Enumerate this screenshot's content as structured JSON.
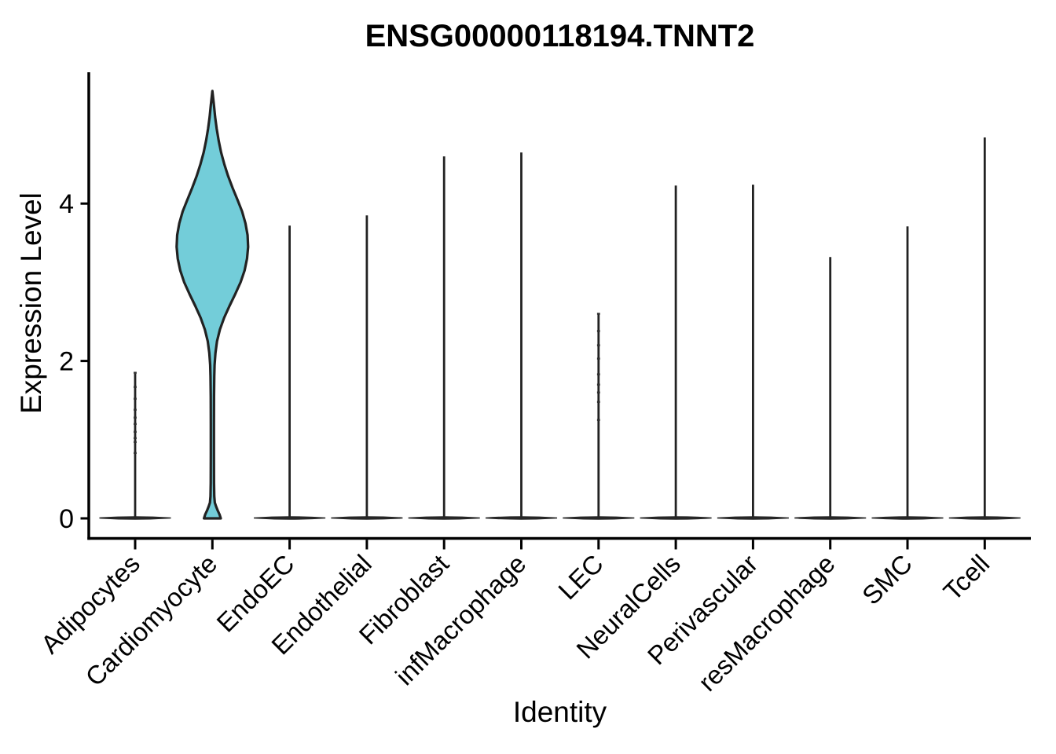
{
  "figure": {
    "title": "ENSG00000118194.TNNT2",
    "x_axis_label": "Identity",
    "y_axis_label": "Expression Level"
  },
  "chart_data": {
    "type": "violin",
    "title": "ENSG00000118194.TNNT2",
    "xlabel": "Identity",
    "ylabel": "Expression Level",
    "ylim": [
      0,
      5.5
    ],
    "y_ticks": [
      0,
      2,
      4
    ],
    "grid": false,
    "legend": "none",
    "x_tick_rotation": -45,
    "violin_width": 0.9,
    "fill_color": "#73CDD9",
    "outline_color": "#222222",
    "zero_bar_color": "#262626",
    "point_color": "#2e2e2e",
    "categories": [
      "Adipocytes",
      "Cardiomyocyte",
      "EndoEC",
      "Endothelial",
      "Fibroblast",
      "infMacrophage",
      "LEC",
      "NeuralCells",
      "Perivascular",
      "resMacrophage",
      "SMC",
      "Tcell"
    ],
    "series": [
      {
        "name": "Adipocytes",
        "shape": "spike",
        "zero_bar": true,
        "max": 1.85,
        "points": [
          1.85,
          1.67,
          1.52,
          1.38,
          1.28,
          1.2,
          1.1,
          1.02,
          0.97,
          0.83
        ]
      },
      {
        "name": "Cardiomyocyte",
        "shape": "violin",
        "zero_bar": false,
        "max": 5.43,
        "points": [],
        "profile": [
          [
            0.0,
            0.235
          ],
          [
            0.05,
            0.2
          ],
          [
            0.1,
            0.15
          ],
          [
            0.15,
            0.105
          ],
          [
            0.2,
            0.068
          ],
          [
            0.28,
            0.052
          ],
          [
            0.45,
            0.047
          ],
          [
            0.8,
            0.045
          ],
          [
            1.2,
            0.045
          ],
          [
            1.55,
            0.047
          ],
          [
            1.8,
            0.052
          ],
          [
            1.95,
            0.062
          ],
          [
            2.1,
            0.085
          ],
          [
            2.25,
            0.13
          ],
          [
            2.4,
            0.21
          ],
          [
            2.55,
            0.33
          ],
          [
            2.7,
            0.48
          ],
          [
            2.85,
            0.64
          ],
          [
            3.0,
            0.79
          ],
          [
            3.15,
            0.9
          ],
          [
            3.3,
            0.97
          ],
          [
            3.45,
            1.0
          ],
          [
            3.6,
            0.985
          ],
          [
            3.75,
            0.925
          ],
          [
            3.9,
            0.83
          ],
          [
            4.05,
            0.7
          ],
          [
            4.2,
            0.565
          ],
          [
            4.35,
            0.44
          ],
          [
            4.5,
            0.335
          ],
          [
            4.65,
            0.245
          ],
          [
            4.8,
            0.175
          ],
          [
            4.95,
            0.12
          ],
          [
            5.1,
            0.078
          ],
          [
            5.25,
            0.045
          ],
          [
            5.43,
            0.0
          ]
        ]
      },
      {
        "name": "EndoEC",
        "shape": "spike",
        "zero_bar": true,
        "max": 3.73,
        "points": []
      },
      {
        "name": "Endothelial",
        "shape": "spike",
        "zero_bar": true,
        "max": 3.86,
        "points": []
      },
      {
        "name": "Fibroblast",
        "shape": "spike",
        "zero_bar": true,
        "max": 4.61,
        "points": []
      },
      {
        "name": "infMacrophage",
        "shape": "spike",
        "zero_bar": true,
        "max": 4.66,
        "points": []
      },
      {
        "name": "LEC",
        "shape": "spike",
        "zero_bar": true,
        "max": 2.6,
        "points": [
          2.6,
          2.38,
          2.2,
          2.03,
          1.83,
          1.7,
          1.6,
          1.48,
          1.25
        ]
      },
      {
        "name": "NeuralCells",
        "shape": "spike",
        "zero_bar": true,
        "max": 4.24,
        "points": []
      },
      {
        "name": "Perivascular",
        "shape": "spike",
        "zero_bar": true,
        "max": 4.25,
        "points": []
      },
      {
        "name": "resMacrophage",
        "shape": "spike",
        "zero_bar": true,
        "max": 3.33,
        "points": []
      },
      {
        "name": "SMC",
        "shape": "spike",
        "zero_bar": true,
        "max": 3.72,
        "points": []
      },
      {
        "name": "Tcell",
        "shape": "spike",
        "zero_bar": true,
        "max": 4.85,
        "points": []
      }
    ]
  }
}
